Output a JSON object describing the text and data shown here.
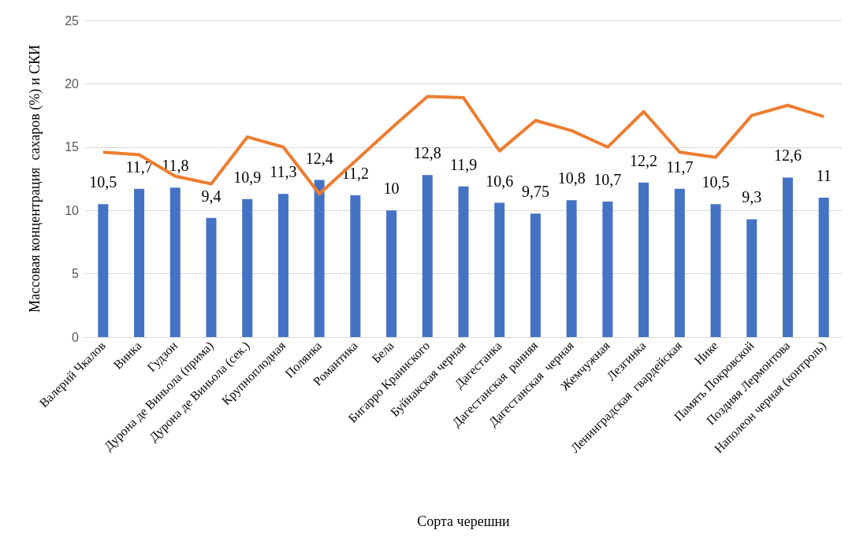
{
  "chart_data": {
    "type": "bar",
    "xlabel": "Сорта черешни",
    "ylabel": "Массовая концентрация  сахаров (%) и СКИ",
    "categories": [
      "Валерий Чкалов",
      "Винка",
      "Гудзон",
      "Дурона де Виньола (прима)",
      "Дурона де Виньола (сек.)",
      "Крупноплодная",
      "Полянка",
      "Романтика",
      "Бела",
      "Бигарро Краинского",
      "Буйнакская черная",
      "Дагестанка",
      "Дагестанская  ранняя",
      "Дагестанская  черная",
      "Жемчужная",
      "Лезгинка",
      "Ленинградская  гвардейская",
      "Нике",
      "Память Покровской",
      "Поздняя Лермонтова",
      "Наполеон черная (контроль)"
    ],
    "series": [
      {
        "color": "#4472c4",
        "values": [
          10.5,
          11.7,
          11.8,
          9.4,
          10.9,
          11.3,
          12.4,
          11.2,
          10,
          12.8,
          11.9,
          10.6,
          9.75,
          10.8,
          10.7,
          12.2,
          11.7,
          10.5,
          9.3,
          12.6,
          11
        ],
        "value_labels": [
          "10,5",
          "11,7",
          "11,8",
          "9,4",
          "10,9",
          "11,3",
          "12,4",
          "11,2",
          "10",
          "12,8",
          "11,9",
          "10,6",
          "9,75",
          "10,8",
          "10,7",
          "12,2",
          "11,7",
          "10,5",
          "9,3",
          "12,6",
          "11"
        ]
      },
      {
        "type": "line",
        "color": "#ed7d31",
        "values": [
          14.6,
          14.4,
          12.7,
          12.1,
          15.8,
          15.0,
          11.3,
          13.9,
          16.5,
          19.0,
          18.9,
          14.7,
          17.1,
          16.3,
          15.0,
          17.8,
          14.6,
          14.2,
          17.5,
          18.3,
          17.4
        ]
      }
    ],
    "ylim": [
      0,
      25
    ],
    "yticks": [
      0,
      5,
      10,
      15,
      20,
      25
    ],
    "grid": "y",
    "marker": "none"
  }
}
